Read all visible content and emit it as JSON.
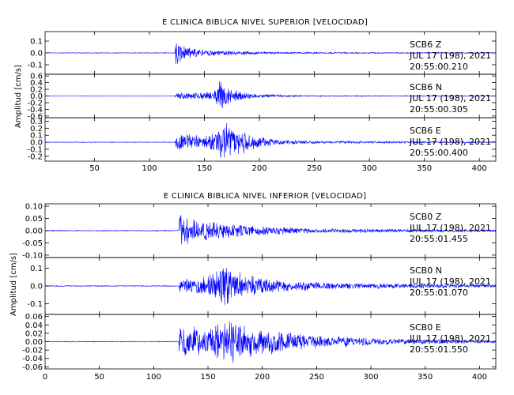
{
  "chart_data": [
    {
      "type": "line",
      "title": "E CLINICA BIBLICA NIVEL SUPERIOR [VELOCIDAD]",
      "ylabel": "Amplitud [cm/s]",
      "xlim": [
        5,
        415
      ],
      "x_ticks": [
        "50",
        "100",
        "150",
        "200",
        "250",
        "300",
        "350",
        "400"
      ],
      "x_tick_values": [
        50,
        100,
        150,
        200,
        250,
        300,
        350,
        400
      ],
      "line_color": "#0000ff",
      "traces": [
        {
          "station": "SCB6",
          "component": "Z",
          "date": "JUL 17 (198), 2021",
          "start_time": "20:55:00.210",
          "ylim": [
            -0.18,
            0.18
          ],
          "yticks": [
            "0.1",
            "0.0",
            "-0.1"
          ],
          "ytick_values": [
            0.1,
            0.0,
            -0.1
          ],
          "envelope": [
            [
              5,
              0.003
            ],
            [
              123,
              0.003
            ],
            [
              124,
              0.16
            ],
            [
              128,
              0.09
            ],
            [
              135,
              0.05
            ],
            [
              150,
              0.03
            ],
            [
              180,
              0.016
            ],
            [
              220,
              0.009
            ],
            [
              300,
              0.005
            ],
            [
              415,
              0.004
            ]
          ]
        },
        {
          "station": "SCB6",
          "component": "N",
          "date": "JUL 17 (198), 2021",
          "start_time": "20:55:00.305",
          "ylim": [
            -0.65,
            0.65
          ],
          "yticks": [
            "0.6",
            "0.4",
            "0.2",
            "0.0",
            "-0.2",
            "-0.4",
            "-0.6"
          ],
          "ytick_values": [
            0.6,
            0.4,
            0.2,
            0.0,
            -0.2,
            -0.4,
            -0.6
          ],
          "envelope": [
            [
              5,
              0.005
            ],
            [
              123,
              0.005
            ],
            [
              124,
              0.12
            ],
            [
              140,
              0.1
            ],
            [
              158,
              0.15
            ],
            [
              165,
              0.55
            ],
            [
              170,
              0.3
            ],
            [
              185,
              0.12
            ],
            [
              200,
              0.06
            ],
            [
              240,
              0.02
            ],
            [
              415,
              0.01
            ]
          ]
        },
        {
          "station": "SCB6",
          "component": "E",
          "date": "JUL 17 (198), 2021",
          "start_time": "20:55:00.400",
          "ylim": [
            -0.27,
            0.35
          ],
          "yticks": [
            "0.3",
            "0.2",
            "0.1",
            "0.0",
            "-0.1",
            "-0.2"
          ],
          "ytick_values": [
            0.3,
            0.2,
            0.1,
            0.0,
            -0.1,
            -0.2
          ],
          "envelope": [
            [
              5,
              0.005
            ],
            [
              123,
              0.005
            ],
            [
              124,
              0.12
            ],
            [
              140,
              0.13
            ],
            [
              150,
              0.1
            ],
            [
              160,
              0.18
            ],
            [
              170,
              0.3
            ],
            [
              180,
              0.22
            ],
            [
              200,
              0.1
            ],
            [
              215,
              0.04
            ],
            [
              260,
              0.02
            ],
            [
              415,
              0.01
            ]
          ]
        }
      ]
    },
    {
      "type": "line",
      "title": "E CLINICA BIBLICA NIVEL INFERIOR [VELOCIDAD]",
      "ylabel": "Amplitud [cm/s]",
      "xlim": [
        0,
        415
      ],
      "x_ticks": [
        "0",
        "50",
        "100",
        "150",
        "200",
        "250",
        "300",
        "350",
        "400"
      ],
      "x_tick_values": [
        0,
        50,
        100,
        150,
        200,
        250,
        300,
        350,
        400
      ],
      "line_color": "#0000ff",
      "traces": [
        {
          "station": "SCB0",
          "component": "Z",
          "date": "JUL 17 (198), 2021",
          "start_time": "20:55:01.455",
          "ylim": [
            -0.11,
            0.11
          ],
          "yticks": [
            "0.10",
            "0.05",
            "0.00",
            "-0.05",
            "-0.10"
          ],
          "ytick_values": [
            0.1,
            0.05,
            0.0,
            -0.05,
            -0.1
          ],
          "envelope": [
            [
              0,
              0.002
            ],
            [
              123,
              0.002
            ],
            [
              124,
              0.1
            ],
            [
              128,
              0.07
            ],
            [
              135,
              0.05
            ],
            [
              160,
              0.035
            ],
            [
              200,
              0.02
            ],
            [
              260,
              0.01
            ],
            [
              415,
              0.005
            ]
          ]
        },
        {
          "station": "SCB0",
          "component": "N",
          "date": "JUL 17 (198), 2021",
          "start_time": "20:55:01.070",
          "ylim": [
            -0.16,
            0.16
          ],
          "yticks": [
            "0.1",
            "0.0",
            "-0.1"
          ],
          "ytick_values": [
            0.1,
            0.0,
            -0.1
          ],
          "envelope": [
            [
              0,
              0.003
            ],
            [
              123,
              0.003
            ],
            [
              124,
              0.04
            ],
            [
              145,
              0.05
            ],
            [
              160,
              0.09
            ],
            [
              165,
              0.15
            ],
            [
              172,
              0.1
            ],
            [
              185,
              0.07
            ],
            [
              210,
              0.04
            ],
            [
              260,
              0.02
            ],
            [
              415,
              0.008
            ]
          ]
        },
        {
          "station": "SCB0",
          "component": "E",
          "date": "JUL 17 (198), 2021",
          "start_time": "20:55:01.550",
          "ylim": [
            -0.065,
            0.065
          ],
          "yticks": [
            "0.06",
            "0.04",
            "0.02",
            "0.00",
            "-0.02",
            "-0.04",
            "-0.06"
          ],
          "ytick_values": [
            0.06,
            0.04,
            0.02,
            0.0,
            -0.02,
            -0.04,
            -0.06
          ],
          "envelope": [
            [
              0,
              0.001
            ],
            [
              123,
              0.001
            ],
            [
              124,
              0.045
            ],
            [
              135,
              0.04
            ],
            [
              150,
              0.035
            ],
            [
              165,
              0.055
            ],
            [
              175,
              0.05
            ],
            [
              190,
              0.04
            ],
            [
              220,
              0.025
            ],
            [
              260,
              0.015
            ],
            [
              320,
              0.008
            ],
            [
              415,
              0.004
            ]
          ]
        }
      ]
    }
  ]
}
